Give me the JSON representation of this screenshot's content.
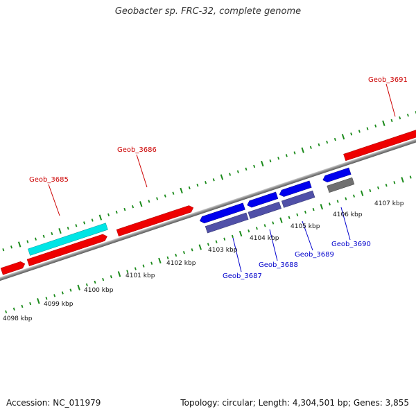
{
  "title": "Geobacter sp. FRC-32, complete genome",
  "accession": "Accession: NC_011979",
  "summary": "Topology: circular; Length: 4,304,501 bp; Genes: 3,855",
  "colors": {
    "forward_gene": "#ee0000",
    "reverse_gene": "#0000ee",
    "rna_feature": "#00e5e5",
    "reverse_cds": "#5050a8",
    "pseudo_feature": "#707070",
    "tick": "#1a8a1a",
    "backbone": "#888888",
    "forward_label": "#cc0000",
    "reverse_label": "#0000cc"
  },
  "scale_labels": [
    "4098 kbp",
    "4099 kbp",
    "4100 kbp",
    "4101 kbp",
    "4102 kbp",
    "4103 kbp",
    "4104 kbp",
    "4105 kbp",
    "4106 kbp",
    "4107 kbp"
  ],
  "gene_labels": [
    {
      "name": "Geob_3685",
      "strand": "forward"
    },
    {
      "name": "Geob_3686",
      "strand": "forward"
    },
    {
      "name": "Geob_3691",
      "strand": "forward"
    },
    {
      "name": "Geob_3687",
      "strand": "reverse"
    },
    {
      "name": "Geob_3688",
      "strand": "reverse"
    },
    {
      "name": "Geob_3689",
      "strand": "reverse"
    },
    {
      "name": "Geob_3690",
      "strand": "reverse"
    }
  ]
}
